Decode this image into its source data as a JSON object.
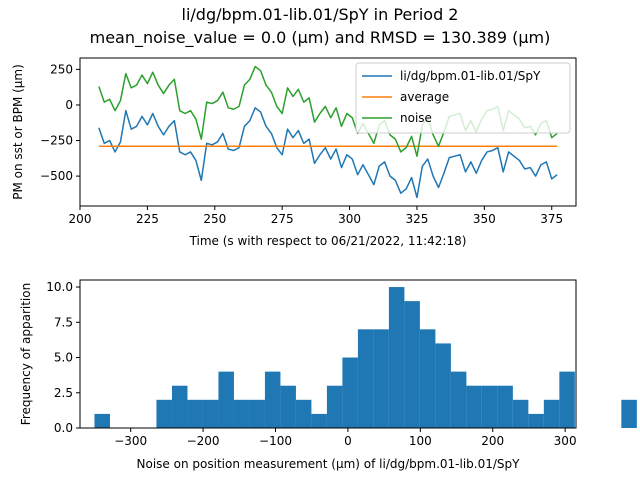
{
  "figure": {
    "title_line1": "li/dg/bpm.01-lib.01/SpY in Period 2",
    "title_line2": "mean_noise_value = 0.0 (μm) and RMSD = 130.389 (μm)"
  },
  "chart_data": [
    {
      "type": "line",
      "xlabel": "Time (s with respect to 06/21/2022, 11:42:18)",
      "ylabel": "PM on sst or BPM (μm)",
      "xlim": [
        200,
        384
      ],
      "ylim": [
        -710,
        330
      ],
      "xticks": [
        200,
        225,
        250,
        275,
        300,
        325,
        350,
        375
      ],
      "yticks": [
        -500,
        -250,
        0,
        250
      ],
      "grid": false,
      "legend_position": "upper right",
      "x": [
        207,
        209,
        211,
        213,
        215,
        217,
        219,
        221,
        223,
        225,
        227,
        229,
        231,
        233,
        235,
        237,
        239,
        241,
        243,
        245,
        247,
        249,
        251,
        253,
        255,
        257,
        259,
        261,
        263,
        265,
        267,
        269,
        271,
        273,
        275,
        277,
        279,
        281,
        283,
        285,
        287,
        289,
        291,
        293,
        295,
        297,
        299,
        301,
        303,
        305,
        307,
        309,
        311,
        313,
        315,
        317,
        319,
        321,
        323,
        325,
        327,
        329,
        331,
        333,
        335,
        337,
        339,
        341,
        343,
        345,
        347,
        349,
        351,
        353,
        355,
        357,
        359,
        361,
        363,
        365,
        367,
        369,
        371,
        373,
        375,
        377
      ],
      "series": [
        {
          "name": "li/dg/bpm.01-lib.01/SpY",
          "color": "#1f77b4",
          "values": [
            -160,
            -270,
            -250,
            -330,
            -260,
            -40,
            -170,
            -150,
            -80,
            -140,
            -60,
            -150,
            -210,
            -150,
            -110,
            -330,
            -350,
            -330,
            -390,
            -530,
            -270,
            -280,
            -260,
            -200,
            -310,
            -320,
            -300,
            -150,
            -110,
            -20,
            -50,
            -150,
            -200,
            -300,
            -350,
            -170,
            -230,
            -180,
            -270,
            -240,
            -410,
            -350,
            -300,
            -380,
            -310,
            -440,
            -350,
            -380,
            -490,
            -420,
            -490,
            -560,
            -430,
            -400,
            -500,
            -530,
            -620,
            -590,
            -510,
            -650,
            -430,
            -380,
            -500,
            -580,
            -480,
            -370,
            -360,
            -350,
            -470,
            -400,
            -480,
            -390,
            -330,
            -320,
            -300,
            -470,
            -330,
            -360,
            -390,
            -450,
            -440,
            -500,
            -420,
            -400,
            -520,
            -490
          ]
        },
        {
          "name": "average",
          "color": "#ff7f0e",
          "values": [
            -290,
            -290,
            -290,
            -290,
            -290,
            -290,
            -290,
            -290,
            -290,
            -290,
            -290,
            -290,
            -290,
            -290,
            -290,
            -290,
            -290,
            -290,
            -290,
            -290,
            -290,
            -290,
            -290,
            -290,
            -290,
            -290,
            -290,
            -290,
            -290,
            -290,
            -290,
            -290,
            -290,
            -290,
            -290,
            -290,
            -290,
            -290,
            -290,
            -290,
            -290,
            -290,
            -290,
            -290,
            -290,
            -290,
            -290,
            -290,
            -290,
            -290,
            -290,
            -290,
            -290,
            -290,
            -290,
            -290,
            -290,
            -290,
            -290,
            -290,
            -290,
            -290,
            -290,
            -290,
            -290,
            -290,
            -290,
            -290,
            -290,
            -290,
            -290,
            -290,
            -290,
            -290,
            -290,
            -290,
            -290,
            -290,
            -290,
            -290,
            -290,
            -290,
            -290,
            -290,
            -290,
            -290
          ]
        },
        {
          "name": "noise",
          "color": "#2ca02c",
          "values": [
            130,
            20,
            40,
            -40,
            30,
            220,
            120,
            140,
            210,
            150,
            230,
            140,
            80,
            140,
            180,
            -40,
            -60,
            -40,
            -100,
            -240,
            20,
            10,
            30,
            90,
            -20,
            -30,
            -10,
            140,
            180,
            270,
            240,
            140,
            90,
            -10,
            -60,
            120,
            60,
            110,
            20,
            50,
            -120,
            -60,
            -10,
            -90,
            -20,
            -150,
            -60,
            -90,
            -200,
            -130,
            -200,
            -270,
            -140,
            -110,
            -210,
            -240,
            -330,
            -300,
            -220,
            -360,
            -140,
            -90,
            -210,
            -290,
            -190,
            -80,
            -70,
            -60,
            -180,
            -110,
            -190,
            -100,
            -40,
            -30,
            -10,
            -180,
            -40,
            -70,
            -100,
            -160,
            -150,
            -210,
            -130,
            -110,
            -230,
            -200
          ]
        }
      ]
    },
    {
      "type": "bar",
      "xlabel": "Noise on position measurement (μm) of li/dg/bpm.01-lib.01/SpY",
      "ylabel": "Frequency of apparition",
      "xlim": [
        -370,
        315
      ],
      "ylim": [
        0,
        10.5
      ],
      "xticks": [
        -300,
        -200,
        -100,
        0,
        100,
        200,
        300
      ],
      "yticks": [
        0.0,
        2.5,
        5.0,
        7.5,
        10.0
      ],
      "ytick_labels": [
        "0.0",
        "2.5",
        "5.0",
        "7.5",
        "10.0"
      ],
      "bin_start": -350,
      "bin_width": 21.4,
      "color": "#1f77b4",
      "values": [
        1,
        0,
        0,
        0,
        2,
        3,
        2,
        2,
        4,
        2,
        2,
        4,
        3,
        2,
        1,
        3,
        5,
        7,
        7,
        10,
        9,
        7,
        6,
        4,
        3,
        3,
        3,
        2,
        1,
        2,
        4,
        0,
        0,
        0,
        2
      ]
    }
  ]
}
